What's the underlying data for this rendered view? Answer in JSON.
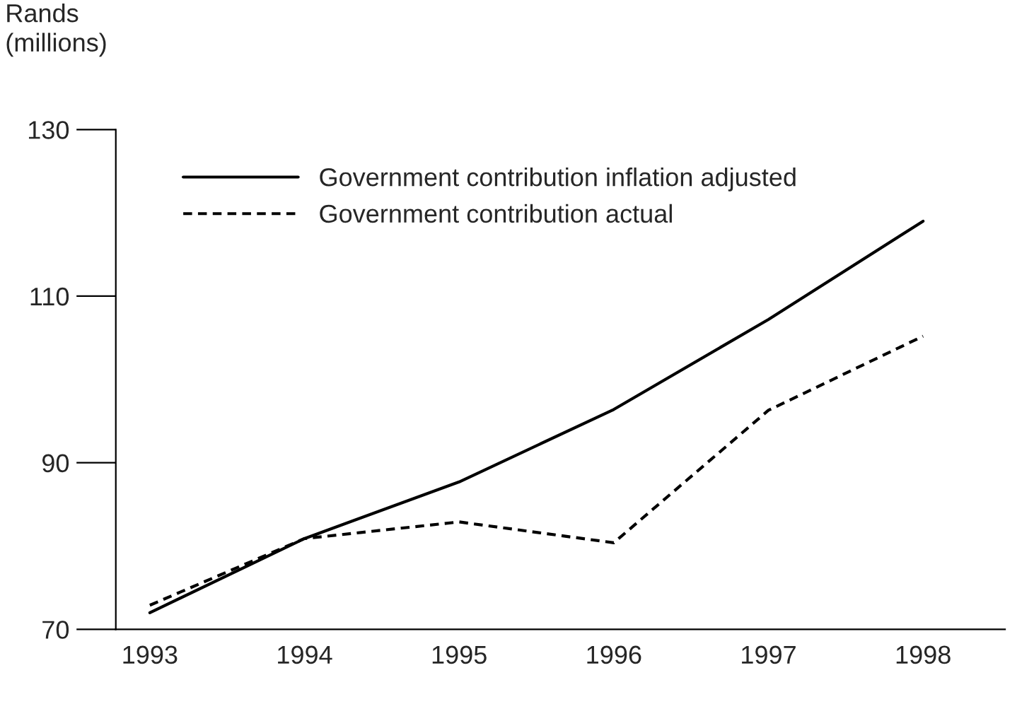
{
  "chart_data": {
    "type": "line",
    "ylabel": "Rands\n(millions)",
    "categories": [
      "1993",
      "1994",
      "1995",
      "1996",
      "1997",
      "1998"
    ],
    "series": [
      {
        "name": "Government contribution inflation adjusted",
        "color": "#000000",
        "line_style": "solid",
        "values": [
          72.0,
          80.9,
          87.7,
          96.4,
          107.2,
          119.0
        ]
      },
      {
        "name": "Government contribution actual",
        "color": "#000000",
        "line_style": "dashed",
        "values": [
          72.9,
          80.9,
          82.9,
          80.4,
          96.3,
          105.2
        ]
      }
    ],
    "ylim": [
      70,
      130
    ],
    "yticks": [
      70,
      90,
      110,
      130
    ],
    "grid": false,
    "legend": "top left",
    "marker": "none"
  }
}
